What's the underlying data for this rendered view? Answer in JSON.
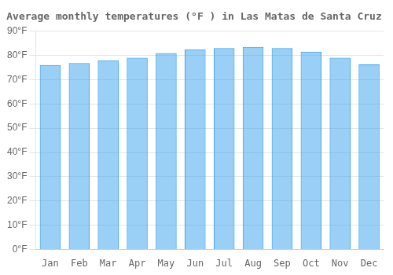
{
  "chart_data": {
    "type": "bar",
    "title": "Average monthly temperatures (°F ) in Las Matas de Santa Cruz",
    "categories": [
      "Jan",
      "Feb",
      "Mar",
      "Apr",
      "May",
      "Jun",
      "Jul",
      "Aug",
      "Sep",
      "Oct",
      "Nov",
      "Dec"
    ],
    "values": [
      76.0,
      76.8,
      78.0,
      79.0,
      81.0,
      82.5,
      83.0,
      83.5,
      83.0,
      81.5,
      79.0,
      76.3
    ],
    "ylim": [
      0,
      90
    ],
    "yticks": [
      {
        "value": 0,
        "label": "0°F"
      },
      {
        "value": 10,
        "label": "10°F"
      },
      {
        "value": 20,
        "label": "20°F"
      },
      {
        "value": 30,
        "label": "30°F"
      },
      {
        "value": 40,
        "label": "40°F"
      },
      {
        "value": 50,
        "label": "50°F"
      },
      {
        "value": 60,
        "label": "60°F"
      },
      {
        "value": 70,
        "label": "70°F"
      },
      {
        "value": 80,
        "label": "80°F"
      },
      {
        "value": 90,
        "label": "90°F"
      }
    ],
    "grid": true
  }
}
